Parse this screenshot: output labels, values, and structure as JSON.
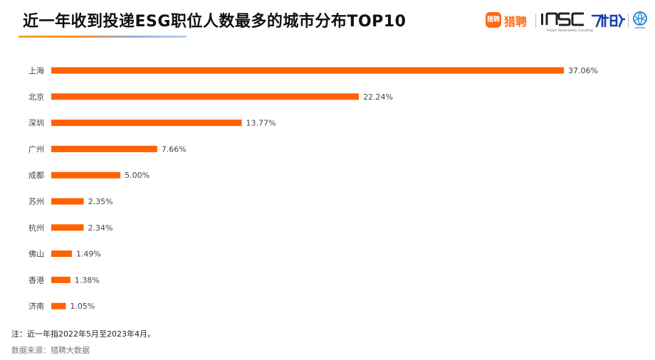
{
  "title": "近一年收到投递ESG职位人数最多的城市分布TOP10",
  "logos": {
    "liepin_icon_text": "猎聘",
    "liepin_text": "猎聘",
    "insc_text": "INSC",
    "diyi_text": "第一财经",
    "icons": [
      "liepin-logo-icon",
      "insc-logo-icon",
      "diyi-caijing-logo-icon",
      "sphere-logo-icon"
    ]
  },
  "chart_data": {
    "type": "bar",
    "orientation": "horizontal",
    "title": "近一年收到投递ESG职位人数最多的城市分布TOP10",
    "categories": [
      "上海",
      "北京",
      "深圳",
      "广州",
      "成都",
      "苏州",
      "杭州",
      "佛山",
      "香港",
      "济南"
    ],
    "values": [
      37.06,
      22.24,
      13.77,
      7.66,
      5.0,
      2.35,
      2.34,
      1.49,
      1.38,
      1.05
    ],
    "value_labels": [
      "37.06%",
      "22.24%",
      "13.77%",
      "7.66%",
      "5.00%",
      "2.35%",
      "2.34%",
      "1.49%",
      "1.38%",
      "1.05%"
    ],
    "unit": "%",
    "bar_color": "#ff6200",
    "grid": false,
    "legend": "none",
    "xlabel": "",
    "ylabel": ""
  },
  "footnote": "注：近一年指2022年5月至2023年4月。",
  "source": "数据来源：猎聘大数据"
}
